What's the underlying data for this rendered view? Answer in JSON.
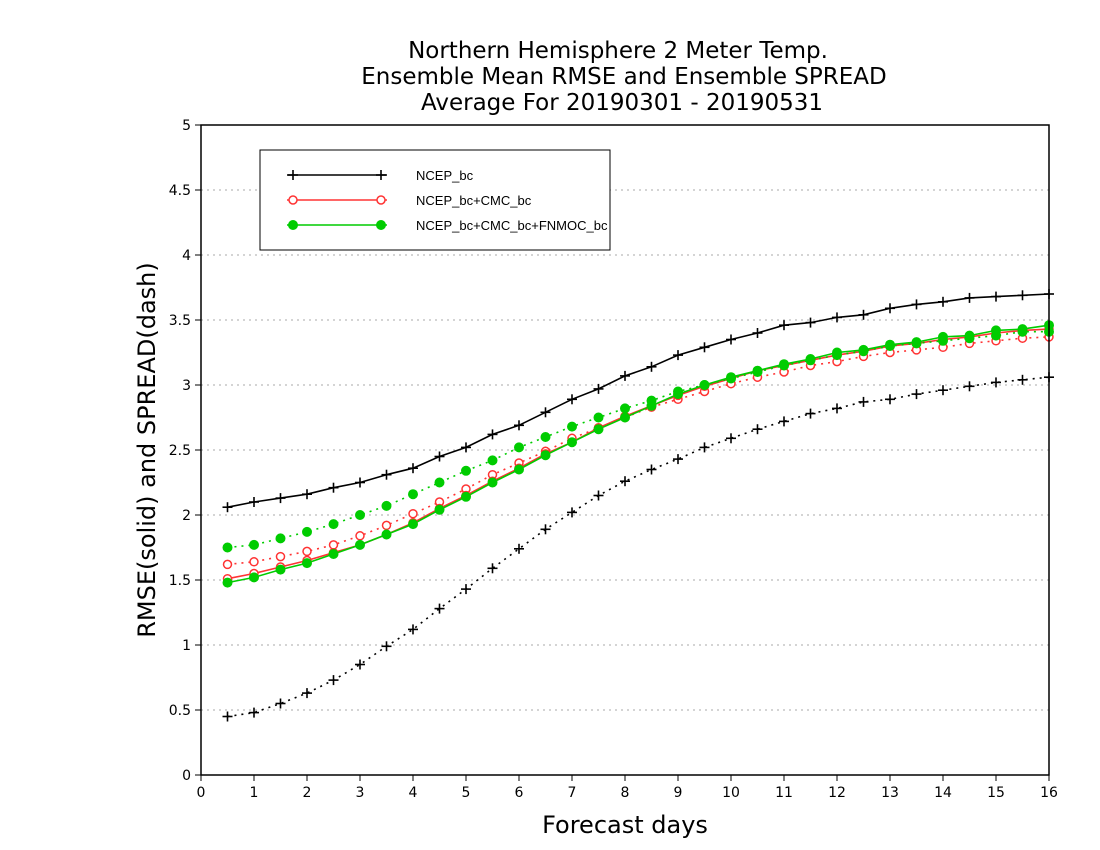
{
  "chart_data": {
    "type": "line",
    "title_lines": [
      "Northern Hemisphere 2 Meter Temp.",
      "Ensemble Mean RMSE and Ensemble SPREAD",
      "Average For 20190301 - 20190531"
    ],
    "xlabel": "Forecast days",
    "ylabel": "RMSE(solid) and SPREAD(dash)",
    "xlim": [
      0,
      16
    ],
    "ylim": [
      0,
      5
    ],
    "x_ticks": [
      "0",
      "1",
      "2",
      "3",
      "4",
      "5",
      "6",
      "7",
      "8",
      "9",
      "10",
      "11",
      "12",
      "13",
      "14",
      "15",
      "16"
    ],
    "y_ticks": [
      "0",
      "0.5",
      "1",
      "1.5",
      "2",
      "2.5",
      "3",
      "3.5",
      "4",
      "4.5",
      "5"
    ],
    "grid": "horizontal dotted",
    "legend_position": "top-left",
    "x": [
      0.5,
      1,
      1.5,
      2,
      2.5,
      3,
      3.5,
      4,
      4.5,
      5,
      5.5,
      6,
      6.5,
      7,
      7.5,
      8,
      8.5,
      9,
      9.5,
      10,
      10.5,
      11,
      11.5,
      12,
      12.5,
      13,
      13.5,
      14,
      14.5,
      15,
      15.5,
      16
    ],
    "series": [
      {
        "name": "NCEP_bc",
        "color": "#000000",
        "marker": "plus",
        "rmse": [
          2.06,
          2.1,
          2.13,
          2.16,
          2.21,
          2.25,
          2.31,
          2.36,
          2.45,
          2.52,
          2.62,
          2.69,
          2.79,
          2.89,
          2.97,
          3.07,
          3.14,
          3.23,
          3.29,
          3.35,
          3.4,
          3.46,
          3.48,
          3.52,
          3.54,
          3.59,
          3.62,
          3.64,
          3.67,
          3.68,
          3.69,
          3.7
        ],
        "spread": [
          0.45,
          0.48,
          0.55,
          0.63,
          0.73,
          0.85,
          0.99,
          1.12,
          1.28,
          1.43,
          1.59,
          1.74,
          1.89,
          2.02,
          2.15,
          2.26,
          2.35,
          2.43,
          2.52,
          2.59,
          2.66,
          2.72,
          2.78,
          2.82,
          2.87,
          2.89,
          2.93,
          2.96,
          2.99,
          3.02,
          3.04,
          3.06
        ]
      },
      {
        "name": "NCEP_bc+CMC_bc",
        "color": "#ff3333",
        "marker": "open-circle",
        "rmse": [
          1.51,
          1.55,
          1.6,
          1.65,
          1.71,
          1.77,
          1.85,
          1.94,
          2.05,
          2.15,
          2.26,
          2.36,
          2.47,
          2.56,
          2.67,
          2.76,
          2.84,
          2.92,
          2.99,
          3.05,
          3.11,
          3.15,
          3.19,
          3.23,
          3.26,
          3.3,
          3.32,
          3.35,
          3.37,
          3.4,
          3.42,
          3.43
        ],
        "spread": [
          1.62,
          1.64,
          1.68,
          1.72,
          1.77,
          1.84,
          1.92,
          2.01,
          2.1,
          2.2,
          2.31,
          2.4,
          2.49,
          2.59,
          2.67,
          2.75,
          2.83,
          2.89,
          2.95,
          3.01,
          3.06,
          3.1,
          3.15,
          3.18,
          3.22,
          3.25,
          3.27,
          3.29,
          3.32,
          3.34,
          3.36,
          3.37
        ]
      },
      {
        "name": "NCEP_bc+CMC_bc+FNMOC_bc",
        "color": "#00cc00",
        "marker": "filled-circle",
        "rmse": [
          1.48,
          1.52,
          1.58,
          1.63,
          1.7,
          1.77,
          1.85,
          1.93,
          2.04,
          2.14,
          2.25,
          2.35,
          2.46,
          2.56,
          2.66,
          2.75,
          2.84,
          2.93,
          3.0,
          3.06,
          3.11,
          3.16,
          3.2,
          3.25,
          3.27,
          3.31,
          3.33,
          3.37,
          3.38,
          3.42,
          3.43,
          3.46
        ],
        "spread": [
          1.75,
          1.77,
          1.82,
          1.87,
          1.93,
          2.0,
          2.07,
          2.16,
          2.25,
          2.34,
          2.42,
          2.52,
          2.6,
          2.68,
          2.75,
          2.82,
          2.88,
          2.95,
          3.0,
          3.05,
          3.1,
          3.15,
          3.19,
          3.23,
          3.26,
          3.3,
          3.32,
          3.34,
          3.36,
          3.38,
          3.41,
          3.41
        ]
      }
    ]
  }
}
